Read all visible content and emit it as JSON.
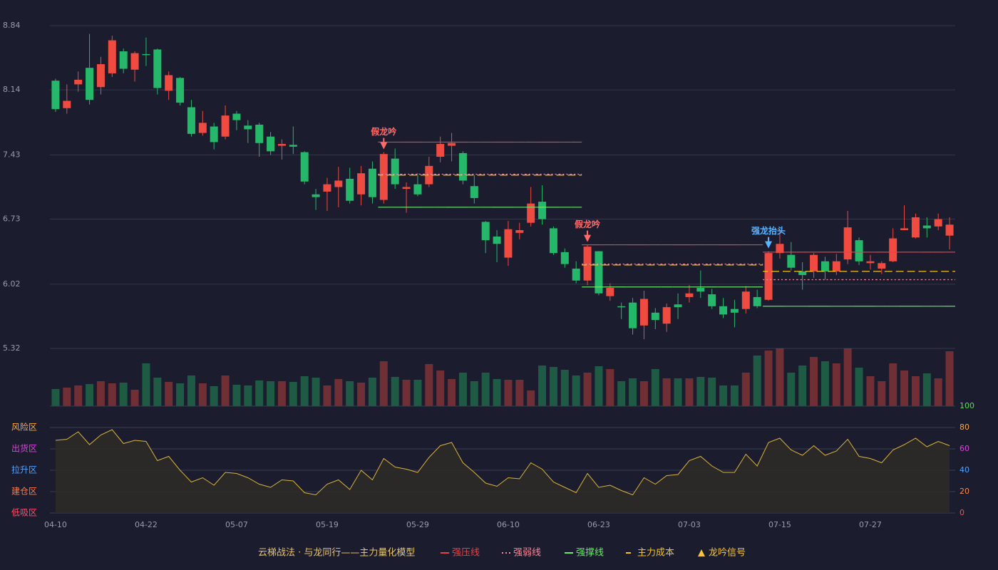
{
  "chart_data": [
    {
      "type": "candlestick",
      "categories": [
        "04-10",
        null,
        null,
        null,
        null,
        null,
        null,
        null,
        "04-22",
        null,
        null,
        null,
        null,
        null,
        null,
        null,
        "05-07",
        null,
        null,
        null,
        null,
        null,
        null,
        null,
        "05-19",
        null,
        null,
        null,
        null,
        null,
        null,
        null,
        "05-29",
        null,
        null,
        null,
        null,
        null,
        null,
        null,
        "06-10",
        null,
        null,
        null,
        null,
        null,
        null,
        null,
        "06-23",
        null,
        null,
        null,
        null,
        null,
        null,
        null,
        "07-03",
        null,
        null,
        null,
        null,
        null,
        null,
        null,
        "07-15",
        null,
        null,
        null,
        null,
        null,
        null,
        null,
        "07-27",
        null,
        null,
        null,
        null,
        null,
        null,
        null
      ],
      "open": [
        8.24,
        7.94,
        8.2,
        8.38,
        8.17,
        8.32,
        8.56,
        8.36,
        8.53,
        8.58,
        8.13,
        8.27,
        7.95,
        7.67,
        7.74,
        7.63,
        7.88,
        7.75,
        7.76,
        7.63,
        7.53,
        7.54,
        7.46,
        7.0,
        7.03,
        7.08,
        7.17,
        7.0,
        7.28,
        6.94,
        7.39,
        7.06,
        7.11,
        7.11,
        7.41,
        7.53,
        7.45,
        7.09,
        6.7,
        6.54,
        6.31,
        6.58,
        6.69,
        6.92,
        6.63,
        6.37,
        6.19,
        6.06,
        6.38,
        5.89,
        5.78,
        5.82,
        5.57,
        5.71,
        5.59,
        5.8,
        5.88,
        5.98,
        5.91,
        5.78,
        5.75,
        5.75,
        5.88,
        5.85,
        6.36,
        6.34,
        6.16,
        6.16,
        6.27,
        6.16,
        6.29,
        6.5,
        6.25,
        6.19,
        6.27,
        6.61,
        6.53,
        6.66,
        6.65,
        6.55
      ],
      "high": [
        8.26,
        8.2,
        8.34,
        8.75,
        8.5,
        8.73,
        8.59,
        8.56,
        8.71,
        8.59,
        8.34,
        8.28,
        8.03,
        7.91,
        7.78,
        7.97,
        7.91,
        7.81,
        7.78,
        7.68,
        7.6,
        7.74,
        7.47,
        7.06,
        7.18,
        7.3,
        7.29,
        7.31,
        7.36,
        7.46,
        7.5,
        7.13,
        7.23,
        7.41,
        7.63,
        7.67,
        7.47,
        7.21,
        6.71,
        6.61,
        6.71,
        6.69,
        7.08,
        7.1,
        6.65,
        6.41,
        6.27,
        6.45,
        6.38,
        6.03,
        5.82,
        5.87,
        5.95,
        5.76,
        5.81,
        5.92,
        6.01,
        6.17,
        5.97,
        5.87,
        5.85,
        6.0,
        5.96,
        6.38,
        6.62,
        6.48,
        6.26,
        6.36,
        6.32,
        6.35,
        6.82,
        6.53,
        6.34,
        6.27,
        6.63,
        6.88,
        6.79,
        6.75,
        6.79,
        6.75
      ],
      "low": [
        7.9,
        7.88,
        8.12,
        7.98,
        8.09,
        8.28,
        8.32,
        8.23,
        8.4,
        8.09,
        8.03,
        7.97,
        7.63,
        7.64,
        7.49,
        7.6,
        7.7,
        7.56,
        7.41,
        7.43,
        7.38,
        7.44,
        7.11,
        6.83,
        6.82,
        6.86,
        6.9,
        6.88,
        6.9,
        6.9,
        7.06,
        6.8,
        6.98,
        7.08,
        7.35,
        7.36,
        7.11,
        6.9,
        6.36,
        6.26,
        6.22,
        6.51,
        6.65,
        6.67,
        6.34,
        6.2,
        6.03,
        6.01,
        5.9,
        5.84,
        5.64,
        5.47,
        5.42,
        5.53,
        5.5,
        5.64,
        5.82,
        5.87,
        5.75,
        5.65,
        5.55,
        5.7,
        5.76,
        5.84,
        6.3,
        6.17,
        5.96,
        6.09,
        6.07,
        6.12,
        6.24,
        6.23,
        6.18,
        6.13,
        6.26,
        6.61,
        6.52,
        6.53,
        6.61,
        6.4
      ],
      "close": [
        7.93,
        8.02,
        8.25,
        8.03,
        8.42,
        8.68,
        8.37,
        8.54,
        8.52,
        8.16,
        8.3,
        8.0,
        7.66,
        7.78,
        7.57,
        7.86,
        7.81,
        7.71,
        7.56,
        7.47,
        7.55,
        7.52,
        7.14,
        6.97,
        7.11,
        7.15,
        6.93,
        7.23,
        6.97,
        7.44,
        7.11,
        7.08,
        7.0,
        7.31,
        7.55,
        7.56,
        7.15,
        6.96,
        6.5,
        6.46,
        6.62,
        6.61,
        6.9,
        6.73,
        6.36,
        6.24,
        6.06,
        6.43,
        5.92,
        5.98,
        5.77,
        5.54,
        5.86,
        5.63,
        5.77,
        5.77,
        5.92,
        5.94,
        5.78,
        5.69,
        5.71,
        5.94,
        5.78,
        6.36,
        6.46,
        6.2,
        6.12,
        6.34,
        6.16,
        6.27,
        6.64,
        6.27,
        6.27,
        6.25,
        6.52,
        6.63,
        6.75,
        6.63,
        6.73,
        6.67
      ],
      "up_color": "#ef4b40",
      "down_color": "#26b86a",
      "ylim": [
        5.32,
        8.84
      ],
      "yticks": [
        5.32,
        6.02,
        6.73,
        7.43,
        8.14,
        8.84
      ],
      "grid": true,
      "levels": [
        {
          "name": "强压线",
          "color": "#e0444a",
          "dash": "solid",
          "values": [
            null,
            null,
            null,
            null,
            null,
            null,
            null,
            null,
            null,
            null,
            null,
            null,
            null,
            null,
            null,
            null,
            null,
            null,
            null,
            null,
            null,
            null,
            null,
            null,
            null,
            null,
            null,
            null,
            null,
            7.57,
            7.57,
            7.57,
            7.57,
            7.57,
            7.57,
            7.57,
            7.57,
            7.57,
            7.57,
            7.57,
            7.57,
            7.57,
            7.57,
            7.57,
            7.57,
            7.57,
            7.57,
            6.45,
            6.45,
            6.45,
            6.45,
            6.45,
            6.45,
            6.45,
            6.45,
            6.45,
            6.45,
            6.45,
            6.45,
            6.45,
            6.45,
            6.45,
            6.45,
            6.37,
            6.37,
            6.37,
            6.37,
            6.37,
            6.37,
            6.37,
            6.37,
            6.37,
            6.37,
            6.37,
            6.37,
            6.37,
            6.37,
            6.37,
            6.37,
            6.37
          ]
        },
        {
          "name": "强弱线",
          "color": "#f08a9c",
          "dash": "dot",
          "values": [
            null,
            null,
            null,
            null,
            null,
            null,
            null,
            null,
            null,
            null,
            null,
            null,
            null,
            null,
            null,
            null,
            null,
            null,
            null,
            null,
            null,
            null,
            null,
            null,
            null,
            null,
            null,
            null,
            null,
            7.22,
            7.22,
            7.22,
            7.22,
            7.22,
            7.22,
            7.22,
            7.22,
            7.22,
            7.22,
            7.22,
            7.22,
            7.22,
            7.22,
            7.22,
            7.22,
            7.22,
            7.22,
            6.24,
            6.24,
            6.24,
            6.24,
            6.24,
            6.24,
            6.24,
            6.24,
            6.24,
            6.24,
            6.24,
            6.24,
            6.24,
            6.24,
            6.24,
            6.24,
            6.07,
            6.07,
            6.07,
            6.07,
            6.07,
            6.07,
            6.07,
            6.07,
            6.07,
            6.07,
            6.07,
            6.07,
            6.07,
            6.07,
            6.07,
            6.07,
            6.07
          ]
        },
        {
          "name": "强撑线",
          "color": "#6be86b",
          "dash": "solid",
          "values": [
            null,
            null,
            null,
            null,
            null,
            null,
            null,
            null,
            null,
            null,
            null,
            null,
            null,
            null,
            null,
            null,
            null,
            null,
            null,
            null,
            null,
            null,
            null,
            null,
            null,
            null,
            null,
            null,
            null,
            6.86,
            6.86,
            6.86,
            6.86,
            6.86,
            6.86,
            6.86,
            6.86,
            6.86,
            6.86,
            6.86,
            6.86,
            6.86,
            6.86,
            6.86,
            6.86,
            6.86,
            6.86,
            5.99,
            5.99,
            5.99,
            5.99,
            5.99,
            5.99,
            5.99,
            5.99,
            5.99,
            5.99,
            5.99,
            5.99,
            5.99,
            5.99,
            5.99,
            5.99,
            5.78,
            5.78,
            5.78,
            5.78,
            5.78,
            5.78,
            5.78,
            5.78,
            5.78,
            5.78,
            5.78,
            5.78,
            5.78,
            5.78,
            5.78,
            5.78,
            5.78
          ]
        },
        {
          "name": "主力成本",
          "color": "#f5c518",
          "dash": "dash",
          "values": [
            null,
            null,
            null,
            null,
            null,
            null,
            null,
            null,
            null,
            null,
            null,
            null,
            null,
            null,
            null,
            null,
            null,
            null,
            null,
            null,
            null,
            null,
            null,
            null,
            null,
            null,
            null,
            null,
            null,
            7.21,
            7.21,
            7.21,
            7.21,
            7.21,
            7.21,
            7.21,
            7.21,
            7.21,
            7.21,
            7.21,
            7.21,
            7.21,
            7.21,
            7.21,
            7.21,
            7.21,
            7.21,
            6.23,
            6.23,
            6.23,
            6.23,
            6.23,
            6.23,
            6.23,
            6.23,
            6.23,
            6.23,
            6.23,
            6.23,
            6.23,
            6.23,
            6.23,
            6.23,
            6.16,
            6.16,
            6.16,
            6.16,
            6.16,
            6.16,
            6.16,
            6.16,
            6.16,
            6.16,
            6.16,
            6.16,
            6.16,
            6.16,
            6.16,
            6.16,
            6.16
          ]
        }
      ],
      "signals": [
        {
          "index": 29,
          "label": "假龙吟",
          "color": "#ff6b6b"
        },
        {
          "index": 47,
          "label": "假龙吟",
          "color": "#ff6b6b"
        },
        {
          "index": 63,
          "label": "强龙抬头",
          "color": "#5ab4ff"
        }
      ],
      "signal_legend": {
        "name": "龙吟信号",
        "color": "#f5c542"
      },
      "legend_title": "云梯战法 · 与龙同行——主力量化模型"
    },
    {
      "type": "bar",
      "values": [
        24,
        26,
        29,
        31,
        35,
        32,
        33,
        23,
        60,
        40,
        34,
        32,
        43,
        32,
        28,
        43,
        30,
        29,
        36,
        35,
        35,
        34,
        42,
        40,
        29,
        38,
        35,
        33,
        40,
        63,
        41,
        37,
        37,
        59,
        50,
        38,
        47,
        35,
        47,
        38,
        37,
        37,
        22,
        57,
        55,
        51,
        43,
        47,
        56,
        52,
        35,
        39,
        35,
        52,
        39,
        39,
        39,
        41,
        40,
        29,
        29,
        47,
        71,
        78,
        81,
        47,
        57,
        69,
        63,
        60,
        81,
        54,
        42,
        35,
        60,
        50,
        42,
        46,
        39,
        77
      ],
      "ylim": [
        0,
        81
      ]
    },
    {
      "type": "line",
      "values": [
        68,
        69,
        76,
        64,
        73,
        78,
        65,
        68,
        67,
        49,
        53,
        40,
        29,
        33,
        26,
        38,
        37,
        33,
        27,
        24,
        31,
        30,
        19,
        17,
        27,
        31,
        22,
        40,
        31,
        51,
        43,
        41,
        38,
        52,
        63,
        66,
        47,
        38,
        28,
        25,
        33,
        32,
        47,
        41,
        29,
        24,
        19,
        37,
        24,
        26,
        21,
        17,
        33,
        27,
        35,
        36,
        49,
        53,
        44,
        38,
        38,
        55,
        44,
        66,
        70,
        59,
        54,
        63,
        54,
        58,
        69,
        53,
        51,
        47,
        59,
        64,
        70,
        62,
        67,
        63
      ],
      "color": "#d9b43a",
      "fill": "#2e2b27",
      "ylim": [
        0,
        100
      ],
      "yticks": [
        0,
        20,
        40,
        60,
        80,
        100
      ],
      "ytick_colors": [
        "#ff4d4d",
        "#ff8a3d",
        "#4da3ff",
        "#e040e0",
        "#ffa940",
        "#52e052"
      ],
      "zones": [
        {
          "value": 0,
          "label": "低吸区",
          "color": "#ff4d6d"
        },
        {
          "value": 20,
          "label": "建仓区",
          "color": "#ff7a45"
        },
        {
          "value": 40,
          "label": "拉升区",
          "color": "#4da3ff"
        },
        {
          "value": 60,
          "label": "出货区",
          "color": "#e040e0"
        },
        {
          "value": 80,
          "label": "风险区",
          "color": "#ffa940"
        }
      ]
    }
  ]
}
